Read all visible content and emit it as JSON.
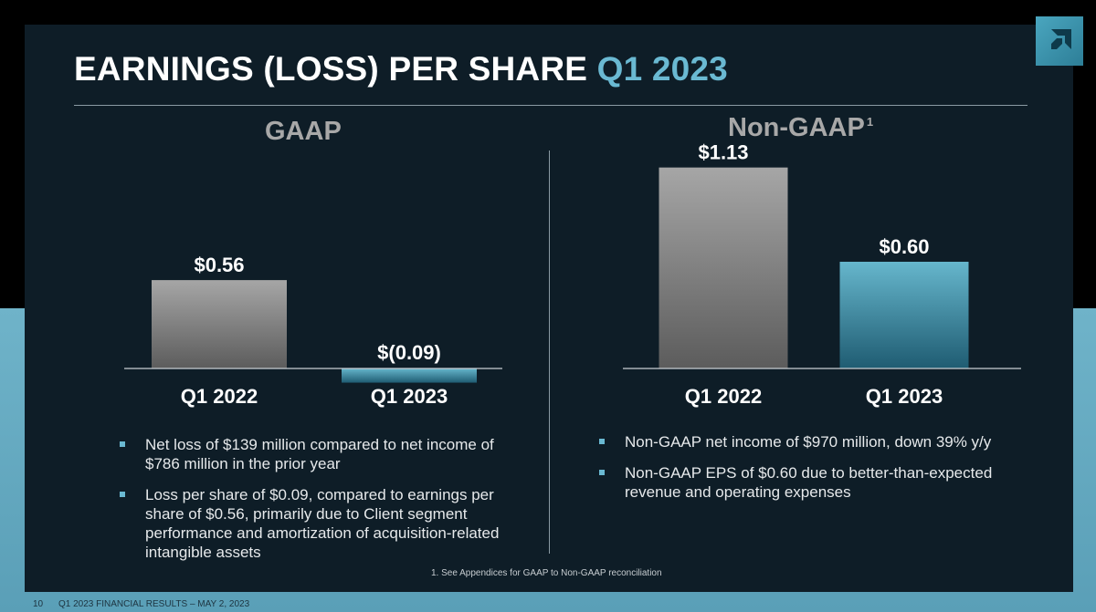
{
  "slide": {
    "title_main": "EARNINGS (LOSS) PER SHARE ",
    "title_accent": "Q1 2023",
    "logo_icon": "amd-logo-icon",
    "colors": {
      "accent": "#6ab9d2",
      "panel": "#0e1d27",
      "gray_bar": "#a0a0a0",
      "teal_bar": "#5fb0c8"
    }
  },
  "gaap": {
    "section_title": "GAAP",
    "bullets": [
      "Net loss of $139 million compared to net income of $786 million in the prior year",
      "Loss per share of $0.09, compared to earnings per share of $0.56, primarily due to Client segment performance and amortization of acquisition-related intangible assets"
    ]
  },
  "non_gaap": {
    "section_title": "Non-GAAP",
    "footnote_marker": "1",
    "bullets": [
      "Non-GAAP net income of $970 million, down 39% y/y",
      "Non-GAAP EPS of $0.60 due to better-than-expected revenue and operating expenses"
    ]
  },
  "chart_data": [
    {
      "type": "bar",
      "title": "GAAP",
      "categories": [
        "Q1 2022",
        "Q1 2023"
      ],
      "values": [
        0.56,
        -0.09
      ],
      "labels": [
        "$0.56",
        "$(0.09)"
      ],
      "ylim": [
        -0.09,
        1.13
      ]
    },
    {
      "type": "bar",
      "title": "Non-GAAP",
      "categories": [
        "Q1 2022",
        "Q1 2023"
      ],
      "values": [
        1.13,
        0.6
      ],
      "labels": [
        "$1.13",
        "$0.60"
      ],
      "ylim": [
        0,
        1.13
      ]
    }
  ],
  "footnote": "1. See Appendices for GAAP to Non-GAAP reconciliation",
  "footer": {
    "page_number": "10",
    "text": "Q1 2023 FINANCIAL RESULTS – MAY 2, 2023"
  }
}
